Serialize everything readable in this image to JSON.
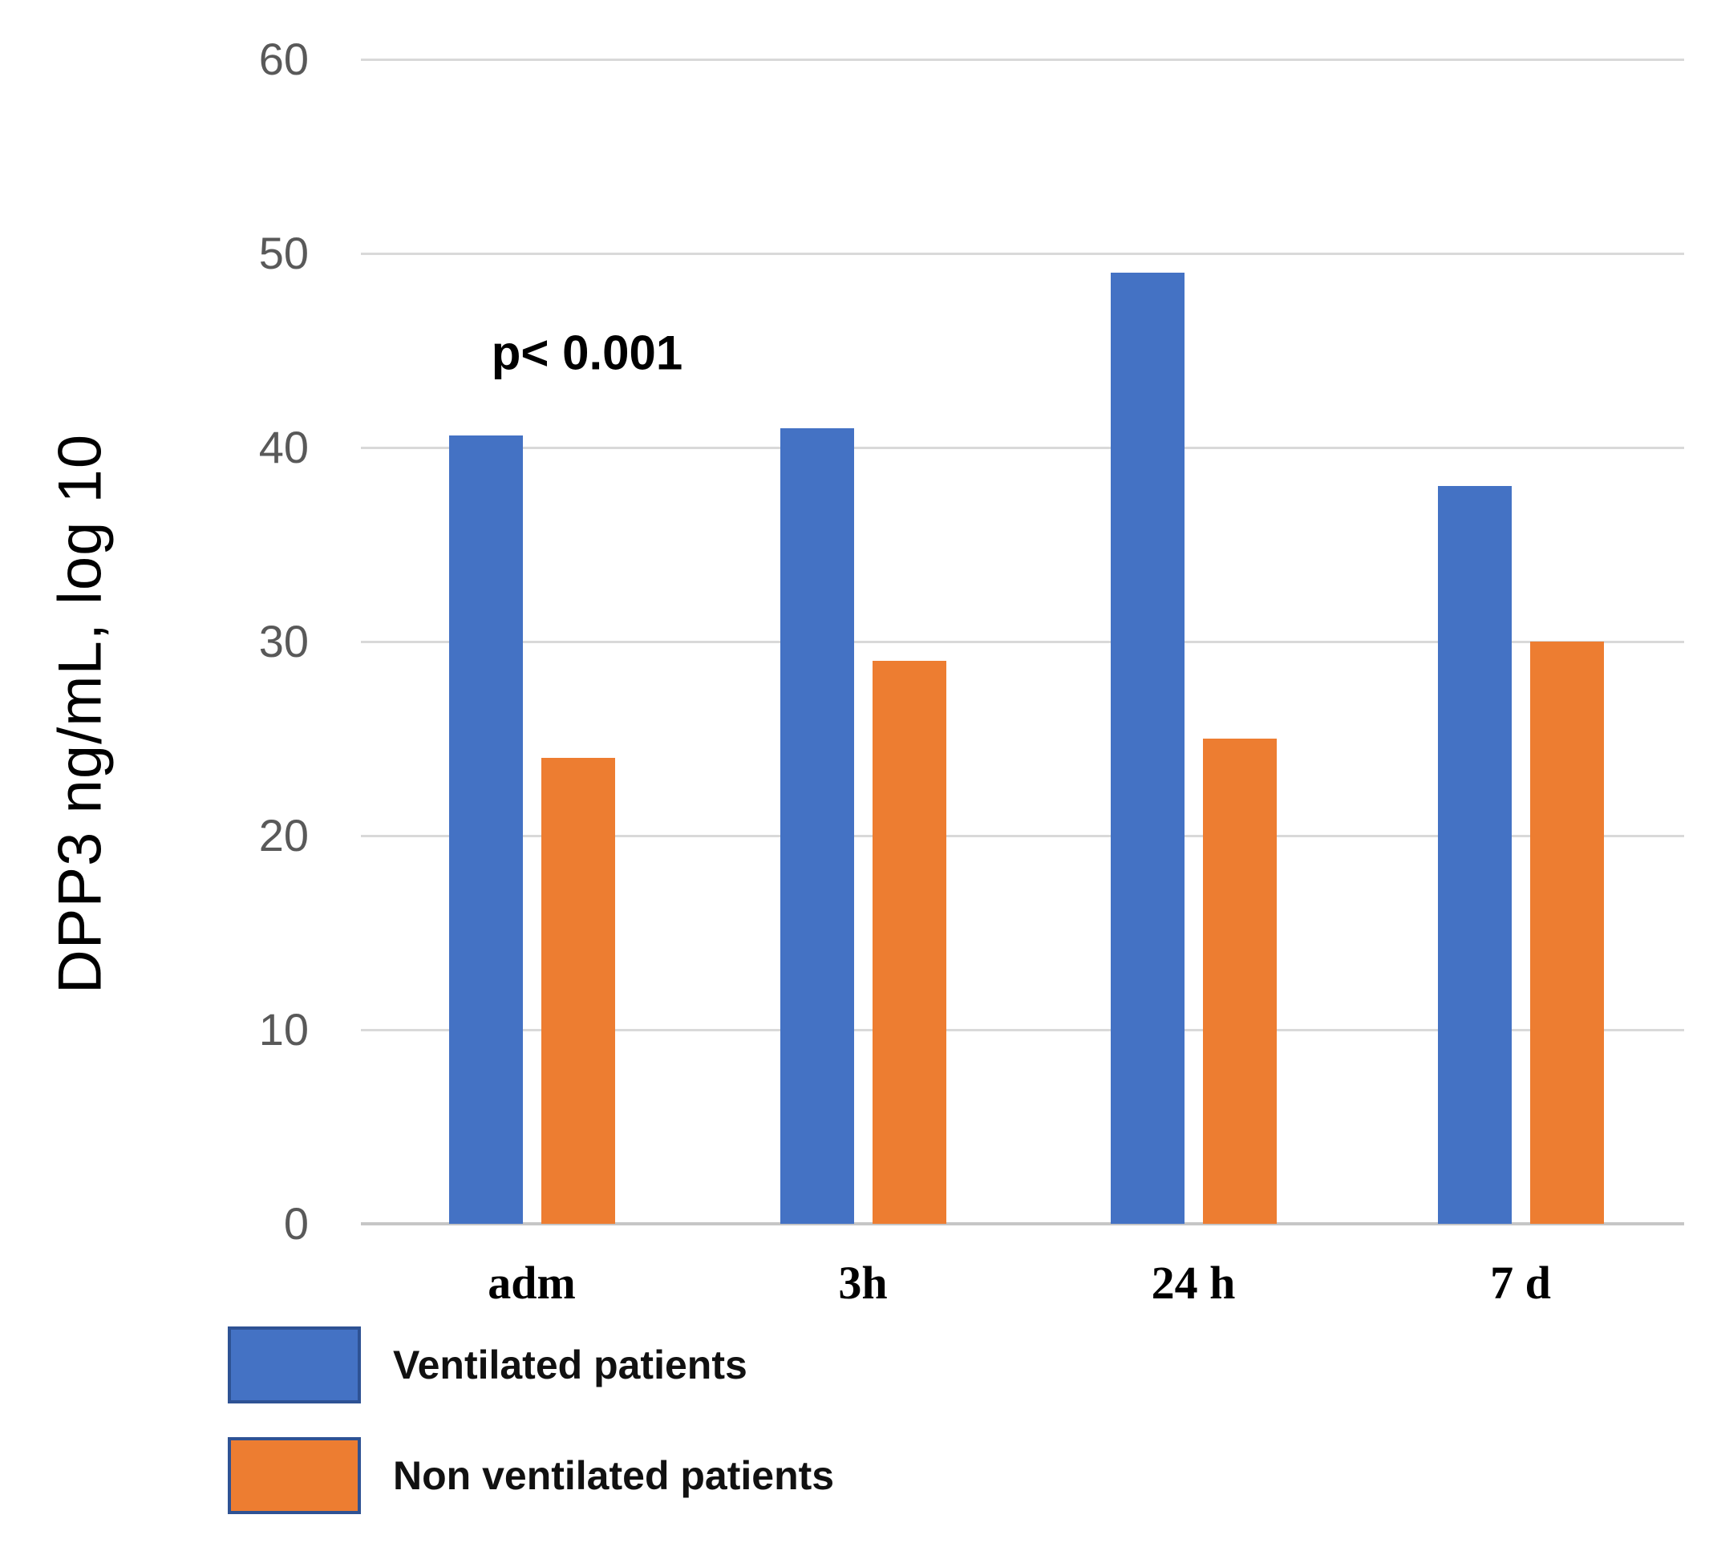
{
  "chart_data": {
    "type": "bar",
    "title": "",
    "xlabel": "",
    "ylabel": "DPP3 ng/mL, log 10",
    "categories": [
      "adm",
      "3h",
      "24 h",
      "7 d"
    ],
    "series": [
      {
        "name": "Ventilated patients",
        "color": "#4472C4",
        "values": [
          40.6,
          41,
          49,
          38
        ]
      },
      {
        "name": "Non ventilated patients",
        "color": "#ED7D31",
        "values": [
          24,
          29,
          25,
          30
        ]
      }
    ],
    "y_ticks": [
      0,
      10,
      20,
      30,
      40,
      50,
      60
    ],
    "ylim": [
      0,
      60
    ],
    "grid": true,
    "legend_position": "bottom-left",
    "annotation": "p< 0.001"
  },
  "colors": {
    "grid_line": "#d9d9d9",
    "axis_line": "#c6c6c6",
    "tick_label": "#595959",
    "legend_swatch_border": "#2e5294",
    "text": "#000000"
  }
}
